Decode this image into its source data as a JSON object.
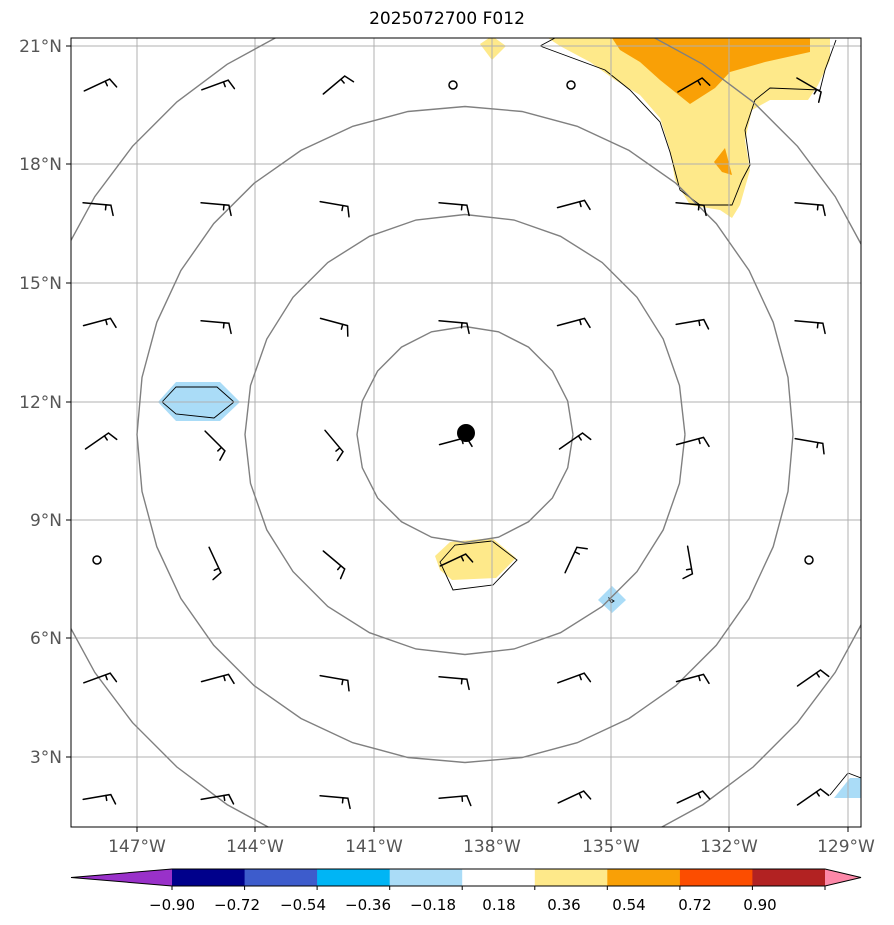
{
  "title": "2025072700 F012",
  "map": {
    "lon_range": [
      -148.5,
      -128.75
    ],
    "lat_range": [
      1.25,
      21.25
    ],
    "lat_ticks": [
      {
        "value": 21,
        "label": "21°N"
      },
      {
        "value": 18,
        "label": "18°N"
      },
      {
        "value": 15,
        "label": "15°N"
      },
      {
        "value": 12,
        "label": "12°N"
      },
      {
        "value": 9,
        "label": "9°N"
      },
      {
        "value": 6,
        "label": "6°N"
      },
      {
        "value": 3,
        "label": "3°N"
      }
    ],
    "lon_ticks": [
      {
        "value": -147,
        "label": "147°W"
      },
      {
        "value": -144,
        "label": "144°W"
      },
      {
        "value": -141,
        "label": "141°W"
      },
      {
        "value": -138,
        "label": "138°W"
      },
      {
        "value": -135,
        "label": "135°W"
      },
      {
        "value": -132,
        "label": "132°W"
      },
      {
        "value": -129,
        "label": "129°W"
      }
    ],
    "storm_center": {
      "lon": -138.65,
      "lat": 11.2
    },
    "range_ring_radii_deg": [
      2.7,
      5.5,
      8.2,
      11.0
    ],
    "colors": {
      "grid": "#b0b0b0",
      "ring": "#808080",
      "contour": "#000000",
      "pos_018_036": "#fee98a",
      "pos_036_054": "#f9a006",
      "neg_018_036": "#aadcf7"
    }
  },
  "colorbar": {
    "colors": [
      "#9931c9",
      "#00008b",
      "#3d5ccc",
      "#00b5f5",
      "#aadcf7",
      "#ffffff",
      "#fee98a",
      "#f9a006",
      "#fc4d00",
      "#b22222",
      "#fc88a8"
    ],
    "tick_labels": [
      "−0.90",
      "−0.72",
      "−0.54",
      "−0.36",
      "−0.18",
      "0.18",
      "0.36",
      "0.54",
      "0.72",
      "0.90"
    ]
  }
}
